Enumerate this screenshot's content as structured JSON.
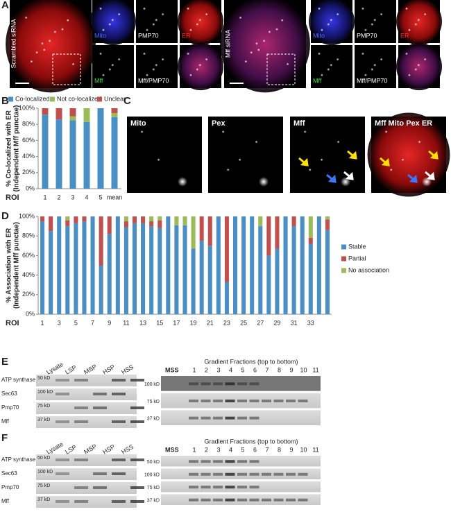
{
  "panel_labels": [
    "A",
    "B",
    "C",
    "D",
    "E",
    "F"
  ],
  "panel_a": [
    {
      "condition": "Scrambled siRNA",
      "channels": [
        "Mito",
        "PMP70",
        "ER",
        "Mff",
        "Mff/PMP70"
      ]
    },
    {
      "condition": "Mff siRNA",
      "channels": [
        "Mito",
        "PMP70",
        "ER",
        "Mff",
        "Mff/PMP70"
      ]
    }
  ],
  "chart_data": [
    {
      "type": "bar",
      "stacked": true,
      "y_label": [
        "% Co-localized with ER",
        "(Independent Mff punctae)"
      ],
      "x_label": "ROI",
      "categories": [
        "1",
        "2",
        "3",
        "4",
        "5",
        "mean"
      ],
      "series": [
        {
          "name": "Co-localized",
          "color": "#4a8fc4",
          "values": [
            92,
            86,
            85,
            83,
            100,
            89
          ]
        },
        {
          "name": "Not co-localized",
          "color": "#9bbb59",
          "values": [
            0,
            0,
            5,
            17,
            0,
            5
          ]
        },
        {
          "name": "Unclear",
          "color": "#c0504d",
          "values": [
            8,
            14,
            10,
            0,
            0,
            6
          ]
        }
      ],
      "ylim": [
        0,
        100
      ],
      "yticks": [
        {
          "value": 0,
          "label": "0%"
        },
        {
          "value": 20,
          "label": "20%"
        },
        {
          "value": 40,
          "label": "40%"
        },
        {
          "value": 60,
          "label": "60%"
        },
        {
          "value": 80,
          "label": "80%"
        },
        {
          "value": 100,
          "label": "100%"
        }
      ],
      "legend": "top"
    },
    {
      "type": "bar",
      "stacked": true,
      "y_label": [
        "% Association with ER",
        "(Independent Mff punctae)"
      ],
      "x_label": "ROI",
      "categories": [
        "1",
        null,
        "3",
        null,
        "5",
        null,
        "7",
        null,
        "9",
        null,
        "11",
        null,
        "13",
        null,
        "15",
        null,
        "17",
        null,
        "19",
        null,
        "21",
        null,
        "23",
        null,
        "25",
        null,
        "27",
        null,
        "29",
        null,
        "31",
        null,
        "33",
        null,
        null
      ],
      "series": [
        {
          "name": "Stable",
          "color": "#4a8fc4",
          "values": [
            95,
            85,
            100,
            90,
            93,
            95,
            100,
            50,
            82,
            100,
            89,
            93,
            93,
            90,
            88,
            100,
            91,
            91,
            67,
            75,
            70,
            100,
            33,
            100,
            100,
            100,
            90,
            60,
            67,
            100,
            90,
            100,
            72,
            100,
            86
          ]
        },
        {
          "name": "Partial",
          "color": "#c0504d",
          "values": [
            5,
            15,
            0,
            6,
            7,
            5,
            0,
            50,
            18,
            0,
            6,
            7,
            7,
            5,
            8,
            0,
            0,
            0,
            0,
            25,
            30,
            0,
            67,
            0,
            0,
            0,
            0,
            40,
            33,
            0,
            10,
            0,
            6,
            0,
            11
          ]
        },
        {
          "name": "No association",
          "color": "#9bbb59",
          "values": [
            0,
            0,
            0,
            4,
            0,
            0,
            0,
            0,
            0,
            0,
            5,
            0,
            0,
            5,
            4,
            0,
            9,
            9,
            33,
            0,
            0,
            0,
            0,
            0,
            0,
            0,
            10,
            0,
            0,
            0,
            0,
            0,
            22,
            0,
            3
          ]
        }
      ],
      "ylim": [
        0,
        100
      ],
      "yticks": [
        {
          "value": 0,
          "label": "0%"
        },
        {
          "value": 20,
          "label": "20%"
        },
        {
          "value": 40,
          "label": "40%"
        },
        {
          "value": 60,
          "label": "60%"
        },
        {
          "value": 80,
          "label": "80%"
        },
        {
          "value": 100,
          "label": "100%"
        }
      ],
      "legend": "right"
    }
  ],
  "panel_c": {
    "channels": [
      "Mito",
      "Pex",
      "Mff",
      "Mff Mito Pex ER"
    ]
  },
  "panel_e": {
    "lanes": [
      "Lysate",
      "LSP",
      "MSP",
      "HSP",
      "HSS"
    ],
    "rows": [
      "ATP synthase",
      "Sec63",
      "Pmp70",
      "Mff"
    ],
    "left_markers": [
      "50 kD",
      "100 kD",
      "75 kD",
      "37 kD"
    ],
    "gradient_title": "Gradient Fractions (top to bottom)",
    "mss": "MSS",
    "fractions": [
      "1",
      "2",
      "3",
      "4",
      "5",
      "6",
      "7",
      "8",
      "9",
      "10",
      "11"
    ],
    "right_markers": [
      "100 kD",
      "75 kD",
      "37 kD"
    ]
  },
  "panel_f": {
    "lanes": [
      "Lysate",
      "LSP",
      "MSP",
      "HSP",
      "HSS"
    ],
    "rows": [
      "ATP synthase",
      "Sec63",
      "Pmp70",
      "Mff"
    ],
    "left_markers": [
      "50 kD",
      "100 kD",
      "75 kD",
      "37 kD"
    ],
    "gradient_title": "Gradient Fractions (top to bottom)",
    "mss": "MSS",
    "fractions": [
      "1",
      "2",
      "3",
      "4",
      "5",
      "6",
      "7",
      "8",
      "9",
      "10",
      "11"
    ],
    "right_markers": [
      "50 kD",
      "100 kD",
      "75 kD",
      "37 kD"
    ]
  }
}
